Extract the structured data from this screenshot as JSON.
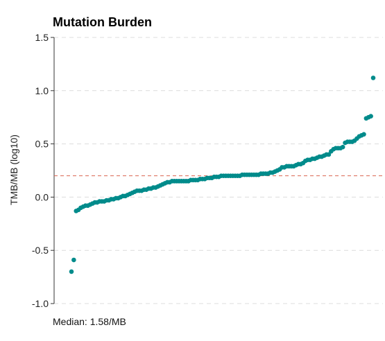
{
  "chart_data": {
    "type": "scatter",
    "title": "Mutation Burden",
    "xlabel": "",
    "ylabel": "TMB/MB (log10)",
    "ylim": [
      -1.0,
      1.5
    ],
    "yticks": [
      "-1.0",
      "-0.5",
      "0.0",
      "0.5",
      "1.0",
      "1.5"
    ],
    "grid": true,
    "legend": "none",
    "caption": "Median: 1.58/MB",
    "median_log10": 0.2,
    "point_color": "#008B8B",
    "median_line_color": "#D9634F",
    "series": [
      {
        "values": [
          -0.7,
          -0.59,
          -0.13,
          -0.12,
          -0.1,
          -0.09,
          -0.08,
          -0.08,
          -0.07,
          -0.06,
          -0.05,
          -0.05,
          -0.04,
          -0.04,
          -0.04,
          -0.03,
          -0.03,
          -0.02,
          -0.02,
          -0.01,
          -0.01,
          0.0,
          0.01,
          0.01,
          0.02,
          0.03,
          0.04,
          0.05,
          0.06,
          0.06,
          0.06,
          0.07,
          0.07,
          0.08,
          0.08,
          0.09,
          0.09,
          0.1,
          0.11,
          0.12,
          0.13,
          0.14,
          0.14,
          0.15,
          0.15,
          0.15,
          0.15,
          0.15,
          0.15,
          0.15,
          0.15,
          0.16,
          0.16,
          0.16,
          0.16,
          0.17,
          0.17,
          0.17,
          0.18,
          0.18,
          0.18,
          0.19,
          0.19,
          0.19,
          0.2,
          0.2,
          0.2,
          0.2,
          0.2,
          0.2,
          0.2,
          0.2,
          0.2,
          0.21,
          0.21,
          0.21,
          0.21,
          0.21,
          0.21,
          0.21,
          0.21,
          0.22,
          0.22,
          0.22,
          0.22,
          0.23,
          0.23,
          0.24,
          0.25,
          0.26,
          0.28,
          0.28,
          0.29,
          0.29,
          0.29,
          0.29,
          0.3,
          0.31,
          0.31,
          0.32,
          0.34,
          0.35,
          0.35,
          0.36,
          0.36,
          0.37,
          0.38,
          0.38,
          0.39,
          0.4,
          0.4,
          0.43,
          0.45,
          0.46,
          0.46,
          0.46,
          0.47,
          0.51,
          0.52,
          0.52,
          0.52,
          0.53,
          0.55,
          0.57,
          0.58,
          0.59,
          0.74,
          0.75,
          0.76,
          1.12
        ]
      }
    ]
  }
}
